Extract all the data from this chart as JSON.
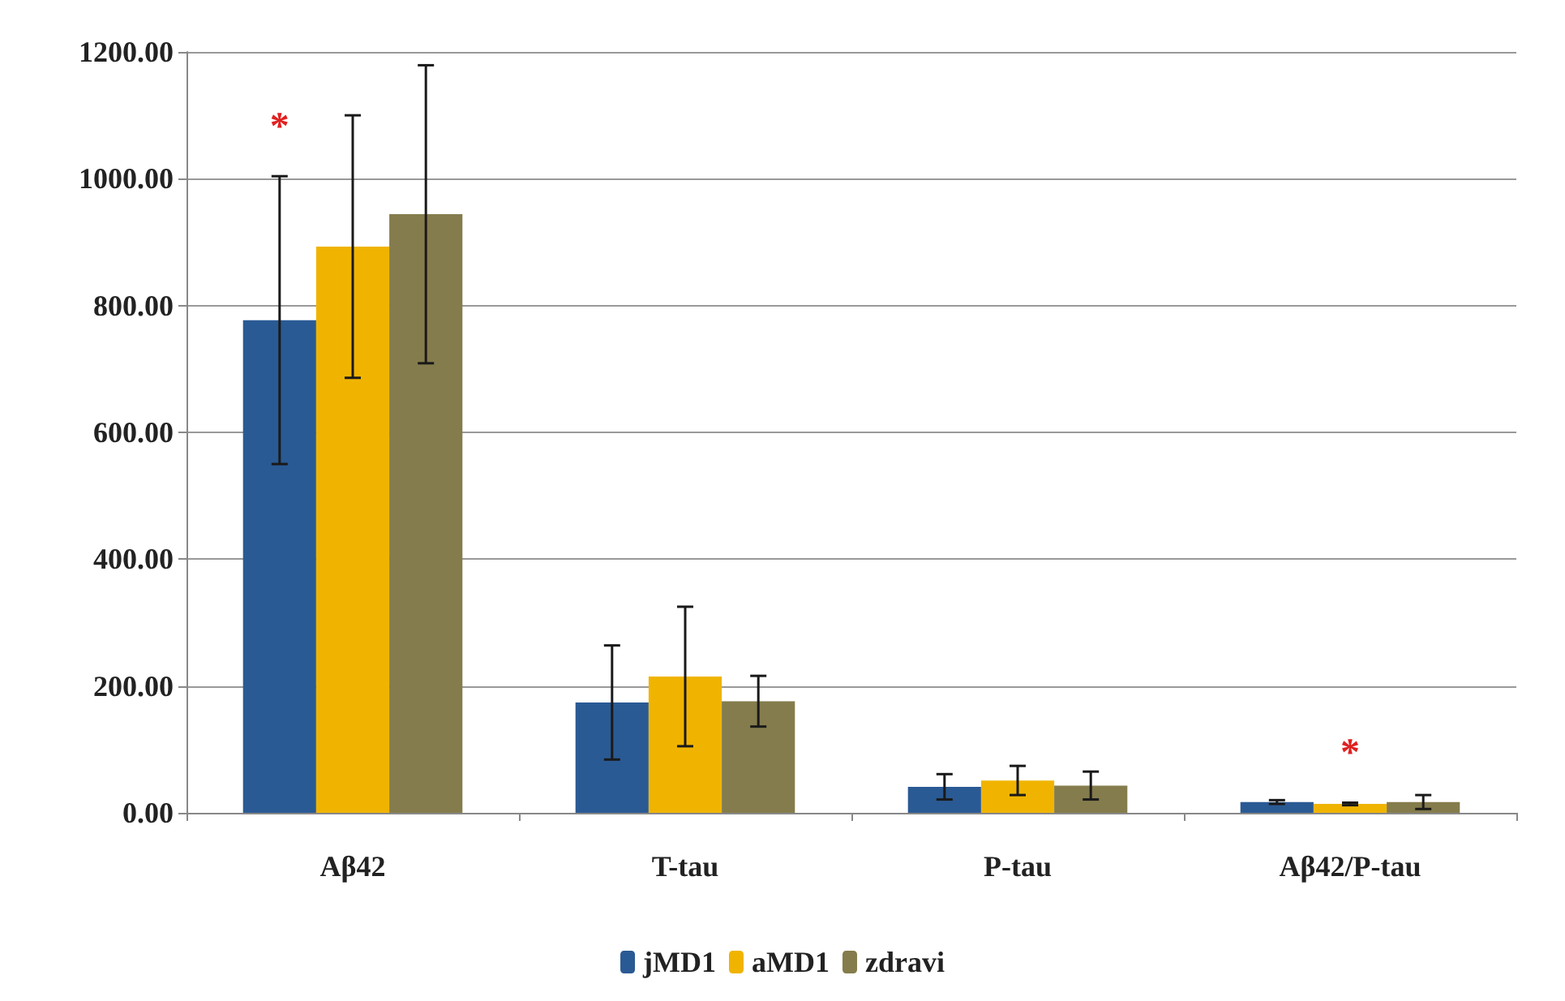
{
  "chart_data": {
    "type": "bar",
    "categories": [
      "Aβ42",
      "T-tau",
      "P-tau",
      "Aβ42/P-tau"
    ],
    "series": [
      {
        "name": "jMD1",
        "color": "#2a5a94",
        "values": [
          777,
          174,
          41,
          17
        ],
        "errors": [
          227,
          90,
          20,
          3
        ]
      },
      {
        "name": "aMD1",
        "color": "#f0b400",
        "values": [
          893,
          215,
          51,
          14
        ],
        "errors": [
          207,
          110,
          23,
          2
        ]
      },
      {
        "name": "zdravi",
        "color": "#847c4c",
        "values": [
          944,
          176,
          43,
          17
        ],
        "errors": [
          235,
          40,
          22,
          11
        ]
      }
    ],
    "ylim": [
      0,
      1200
    ],
    "yticks": [
      {
        "value": 0,
        "label": "0.00"
      },
      {
        "value": 200,
        "label": "200.00"
      },
      {
        "value": 400,
        "label": "400.00"
      },
      {
        "value": 600,
        "label": "600.00"
      },
      {
        "value": 800,
        "label": "800.00"
      },
      {
        "value": 1000,
        "label": "1000.00"
      },
      {
        "value": 1200,
        "label": "1200.00"
      }
    ],
    "annotations": [
      {
        "text": "*",
        "x": "Aβ42",
        "y": 1004
      },
      {
        "text": "*",
        "x": "Aβ42/P-tau",
        "y": 16
      }
    ],
    "grid": "y",
    "legend": "bottom"
  }
}
